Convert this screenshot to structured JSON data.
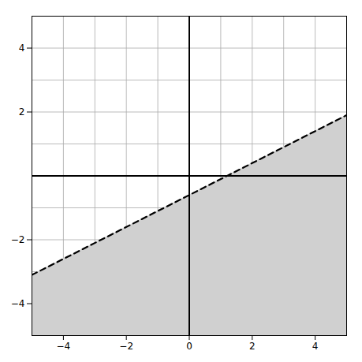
{
  "chart_data": {
    "type": "area",
    "x": [
      -5,
      5
    ],
    "series": [
      {
        "type": "area",
        "color": "#d0d0d0",
        "values": [
          -3.1,
          1.9
        ]
      },
      {
        "type": "line",
        "color": "#000000",
        "line_style": "dashed",
        "values": [
          -3.1,
          1.9
        ]
      }
    ],
    "xlim": [
      -5,
      5
    ],
    "ylim": [
      -5,
      5
    ],
    "xticks": [
      -4,
      -2,
      0,
      2,
      4
    ],
    "yticks": [
      -4,
      -2,
      2,
      4
    ],
    "grid": true
  }
}
